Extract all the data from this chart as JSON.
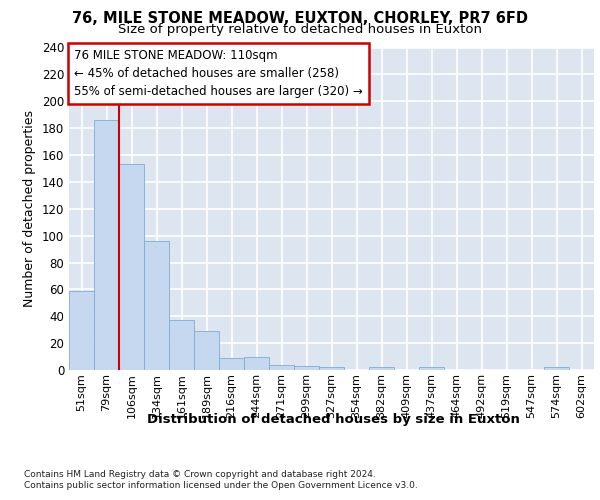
{
  "title1": "76, MILE STONE MEADOW, EUXTON, CHORLEY, PR7 6FD",
  "title2": "Size of property relative to detached houses in Euxton",
  "xlabel": "Distribution of detached houses by size in Euxton",
  "ylabel": "Number of detached properties",
  "categories": [
    "51sqm",
    "79sqm",
    "106sqm",
    "134sqm",
    "161sqm",
    "189sqm",
    "216sqm",
    "244sqm",
    "271sqm",
    "299sqm",
    "327sqm",
    "354sqm",
    "382sqm",
    "409sqm",
    "437sqm",
    "464sqm",
    "492sqm",
    "519sqm",
    "547sqm",
    "574sqm",
    "602sqm"
  ],
  "values": [
    59,
    186,
    153,
    96,
    37,
    29,
    9,
    10,
    4,
    3,
    2,
    0,
    2,
    0,
    2,
    0,
    0,
    0,
    0,
    2,
    0
  ],
  "bar_color": "#c5d8f0",
  "bar_edge_color": "#7aafd4",
  "annotation_line1": "76 MILE STONE MEADOW: 110sqm",
  "annotation_line2": "← 45% of detached houses are smaller (258)",
  "annotation_line3": "55% of semi-detached houses are larger (320) →",
  "vline_color": "#cc0000",
  "annotation_box_color": "#cc0000",
  "ylim": [
    0,
    240
  ],
  "yticks": [
    0,
    20,
    40,
    60,
    80,
    100,
    120,
    140,
    160,
    180,
    200,
    220,
    240
  ],
  "bg_color": "#dde6f0",
  "grid_color": "#ffffff",
  "footer1": "Contains HM Land Registry data © Crown copyright and database right 2024.",
  "footer2": "Contains public sector information licensed under the Open Government Licence v3.0."
}
